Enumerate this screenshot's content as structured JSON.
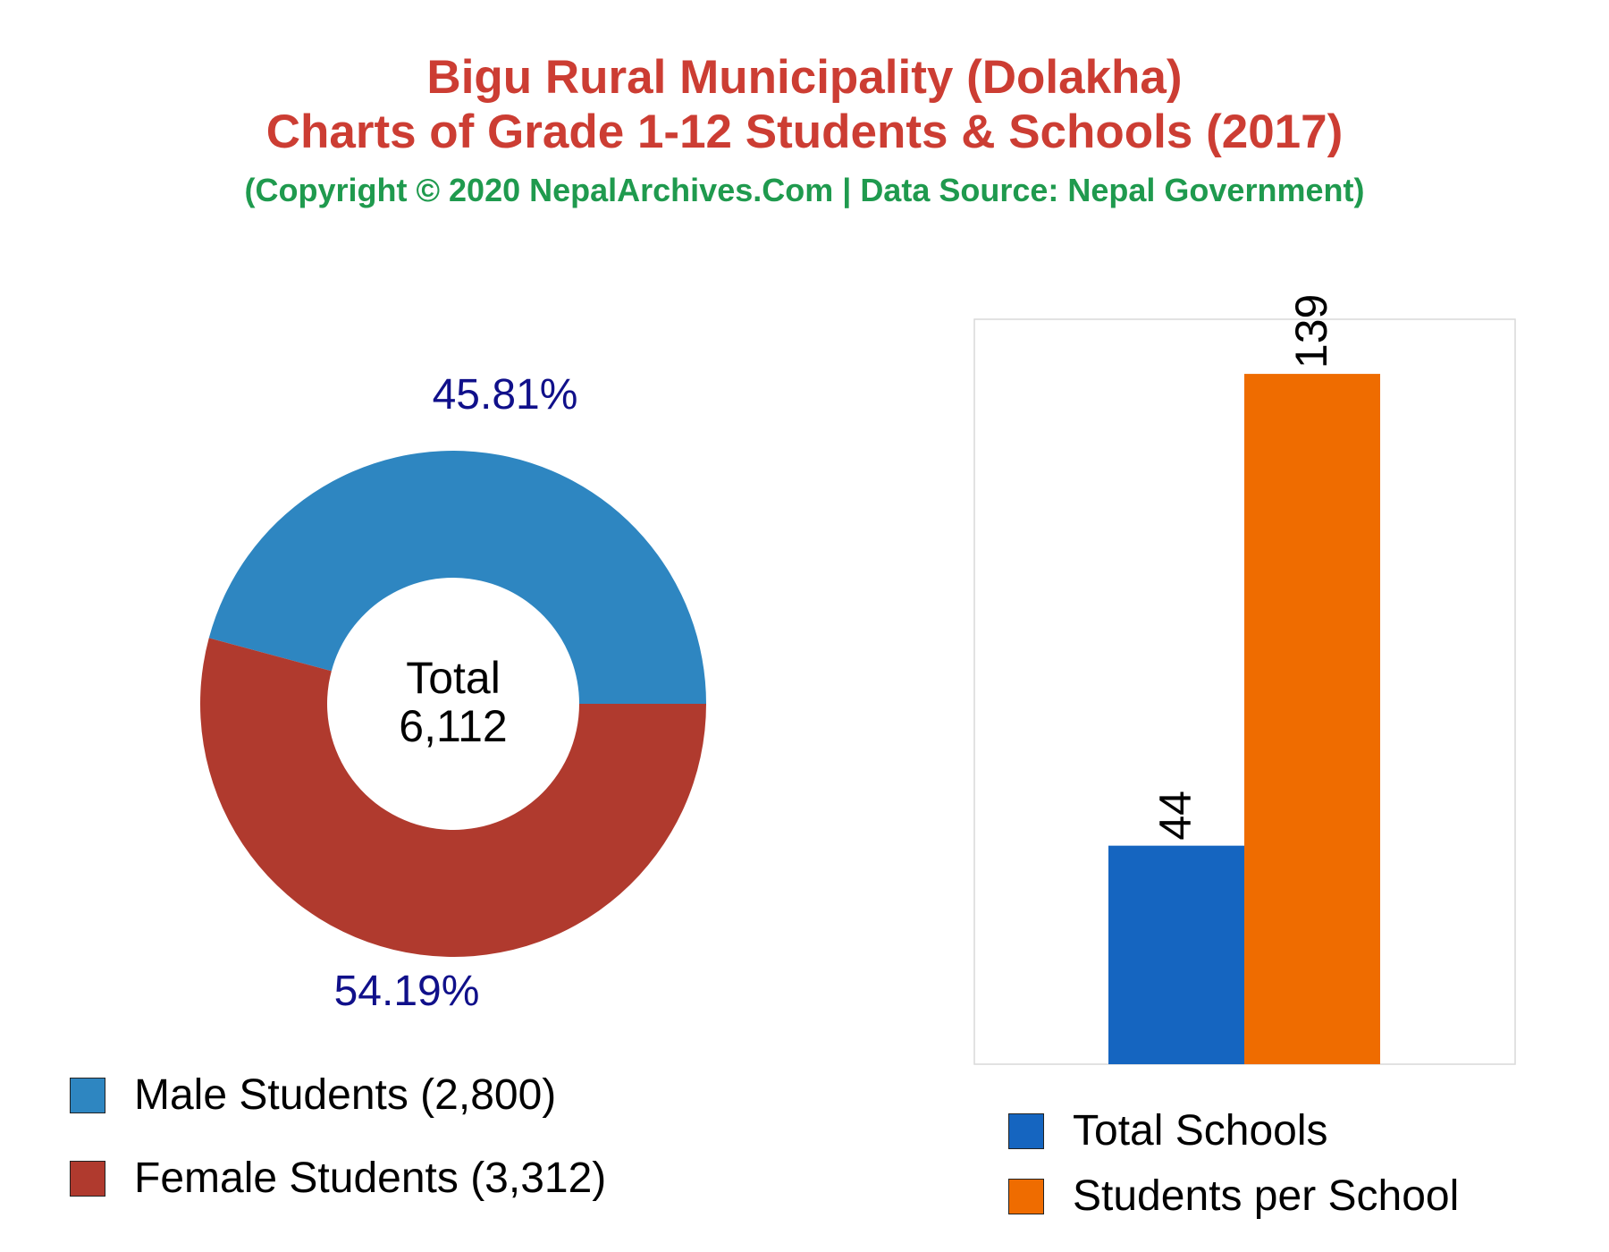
{
  "header": {
    "title_line1": "Bigu Rural Municipality (Dolakha)",
    "title_line2": "Charts of Grade 1-12 Students & Schools (2017)",
    "subtitle": "(Copyright © 2020 NepalArchives.Com | Data Source: Nepal Government)"
  },
  "colors": {
    "title": "#cc3d33",
    "subtitle": "#1f9a4e",
    "male": "#2e86c1",
    "female": "#b03a2e",
    "total_schools": "#1565c0",
    "students_per_school": "#ef6c00",
    "percent_label": "#10108a"
  },
  "chart_data": [
    {
      "type": "pie",
      "donut": true,
      "center_label": "Total",
      "center_value": "6,112",
      "slices": [
        {
          "name": "Male Students",
          "value": 2800,
          "percent_label": "45.81%",
          "legend_label": "Male Students (2,800)"
        },
        {
          "name": "Female Students",
          "value": 3312,
          "percent_label": "54.19%",
          "legend_label": "Female Students (3,312)"
        }
      ],
      "legend_position": "bottom-left"
    },
    {
      "type": "bar",
      "categories": [
        "Total Schools",
        "Students per School"
      ],
      "values": [
        44,
        139
      ],
      "value_labels": [
        "44",
        "139"
      ],
      "ylim": [
        0,
        150
      ],
      "grid": false,
      "legend_position": "bottom"
    }
  ]
}
